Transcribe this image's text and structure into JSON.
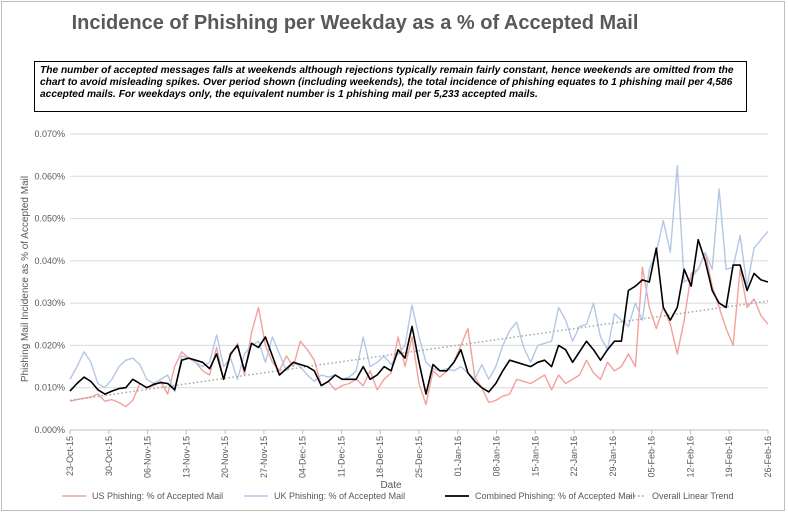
{
  "chart_data": {
    "type": "line",
    "title": "Incidence of Phishing per Weekday as a % of Accepted Mail",
    "note": "The number of accepted messages falls at weekends although rejections typically remain fairly constant, hence weekends are omitted from the chart to avoid misleading spikes. Over period shown (including weekends), the total incidence of phishing equates to 1 phishing mail per 4,586 accepted mails. For weekdays only, the equivalent number is 1 phishing mail per 5,233 accepted mails.",
    "xlabel": "Date",
    "ylabel": "Phishing Mail Incidence as % of Accepted Mail",
    "ylim": [
      0,
      0.07
    ],
    "y_ticks": [
      "0.000%",
      "0.010%",
      "0.020%",
      "0.030%",
      "0.040%",
      "0.050%",
      "0.060%",
      "0.070%"
    ],
    "x_ticks": [
      "23-Oct-15",
      "30-Oct-15",
      "06-Nov-15",
      "13-Nov-15",
      "20-Nov-15",
      "27-Nov-15",
      "04-Dec-15",
      "11-Dec-15",
      "18-Dec-15",
      "25-Dec-15",
      "01-Jan-16",
      "08-Jan-16",
      "15-Jan-16",
      "22-Jan-16",
      "29-Jan-16",
      "05-Feb-16",
      "12-Feb-16",
      "19-Feb-16",
      "26-Feb-16"
    ],
    "colors": {
      "us": "#f4a09b",
      "uk": "#b4c7e7",
      "combined": "#000000",
      "trend": "#a6a6a6"
    },
    "series": [
      {
        "name": "US Phishing: % of Accepted Mail",
        "values": [
          0.0068,
          0.0072,
          0.0075,
          0.0078,
          0.0085,
          0.0068,
          0.0072,
          0.0065,
          0.0055,
          0.007,
          0.011,
          0.01,
          0.0105,
          0.0115,
          0.0085,
          0.015,
          0.0185,
          0.017,
          0.016,
          0.014,
          0.013,
          0.0195,
          0.012,
          0.0175,
          0.0205,
          0.013,
          0.023,
          0.029,
          0.02,
          0.016,
          0.014,
          0.0175,
          0.015,
          0.021,
          0.019,
          0.0165,
          0.0105,
          0.0115,
          0.0095,
          0.0105,
          0.011,
          0.012,
          0.0105,
          0.014,
          0.0095,
          0.012,
          0.0135,
          0.022,
          0.015,
          0.022,
          0.011,
          0.006,
          0.014,
          0.0125,
          0.014,
          0.016,
          0.02,
          0.024,
          0.0125,
          0.01,
          0.0065,
          0.007,
          0.008,
          0.0085,
          0.012,
          0.0115,
          0.011,
          0.012,
          0.013,
          0.0095,
          0.013,
          0.011,
          0.012,
          0.013,
          0.0165,
          0.0135,
          0.012,
          0.016,
          0.014,
          0.015,
          0.018,
          0.015,
          0.0385,
          0.029,
          0.024,
          0.029,
          0.025,
          0.018,
          0.026,
          0.037,
          0.038,
          0.042,
          0.034,
          0.029,
          0.024,
          0.02,
          0.038,
          0.029,
          0.031,
          0.027,
          0.025
        ]
      },
      {
        "name": "UK Phishing: % of Accepted Mail",
        "values": [
          0.012,
          0.015,
          0.0185,
          0.016,
          0.011,
          0.01,
          0.012,
          0.015,
          0.0165,
          0.017,
          0.0155,
          0.012,
          0.011,
          0.012,
          0.013,
          0.009,
          0.0175,
          0.017,
          0.016,
          0.015,
          0.016,
          0.0225,
          0.015,
          0.017,
          0.012,
          0.018,
          0.02,
          0.021,
          0.016,
          0.022,
          0.018,
          0.014,
          0.016,
          0.015,
          0.013,
          0.0115,
          0.013,
          0.0125,
          0.013,
          0.012,
          0.0125,
          0.014,
          0.022,
          0.015,
          0.016,
          0.0175,
          0.0155,
          0.018,
          0.02,
          0.0295,
          0.022,
          0.016,
          0.0145,
          0.014,
          0.0145,
          0.014,
          0.015,
          0.0135,
          0.012,
          0.0155,
          0.012,
          0.015,
          0.02,
          0.0235,
          0.0255,
          0.0195,
          0.016,
          0.02,
          0.0205,
          0.021,
          0.029,
          0.026,
          0.021,
          0.0245,
          0.025,
          0.03,
          0.022,
          0.019,
          0.0275,
          0.026,
          0.0245,
          0.03,
          0.026,
          0.038,
          0.042,
          0.0495,
          0.042,
          0.0625,
          0.035,
          0.036,
          0.038,
          0.042,
          0.038,
          0.057,
          0.038,
          0.0385,
          0.046,
          0.034,
          0.043,
          0.045,
          0.047
        ]
      },
      {
        "name": "Combined Phishing: % of Accepted Mail",
        "values": [
          0.0092,
          0.011,
          0.0125,
          0.0115,
          0.0095,
          0.0085,
          0.0092,
          0.0098,
          0.01,
          0.012,
          0.011,
          0.01,
          0.0108,
          0.0112,
          0.011,
          0.0095,
          0.0165,
          0.017,
          0.0165,
          0.016,
          0.0145,
          0.018,
          0.012,
          0.018,
          0.02,
          0.014,
          0.0205,
          0.0195,
          0.022,
          0.0175,
          0.013,
          0.0145,
          0.016,
          0.0155,
          0.015,
          0.014,
          0.0105,
          0.0115,
          0.013,
          0.012,
          0.012,
          0.012,
          0.015,
          0.012,
          0.013,
          0.015,
          0.014,
          0.019,
          0.017,
          0.0245,
          0.016,
          0.0085,
          0.0155,
          0.014,
          0.014,
          0.016,
          0.019,
          0.0135,
          0.0115,
          0.01,
          0.009,
          0.011,
          0.014,
          0.0165,
          0.016,
          0.0155,
          0.015,
          0.016,
          0.0165,
          0.015,
          0.02,
          0.019,
          0.016,
          0.0185,
          0.021,
          0.019,
          0.0165,
          0.019,
          0.021,
          0.021,
          0.033,
          0.034,
          0.0355,
          0.035,
          0.043,
          0.029,
          0.026,
          0.029,
          0.038,
          0.034,
          0.045,
          0.04,
          0.033,
          0.03,
          0.029,
          0.039,
          0.039,
          0.033,
          0.037,
          0.0355,
          0.035
        ]
      },
      {
        "name": "Overall Linear Trend",
        "line_style": "dotted",
        "values": [
          0.007,
          0.0305
        ]
      }
    ]
  }
}
